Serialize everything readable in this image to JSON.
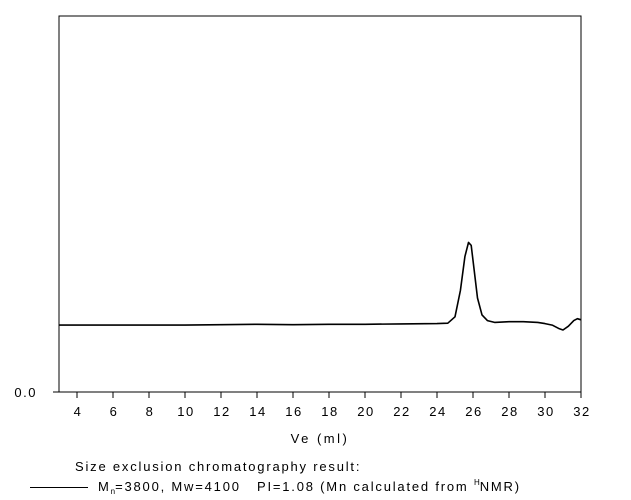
{
  "chart_data": {
    "type": "line",
    "xlabel": "Ve (ml)",
    "ylabel": "",
    "xlim": [
      3,
      32
    ],
    "ylim": [
      0,
      1
    ],
    "x_ticks": [
      4,
      6,
      8,
      10,
      12,
      14,
      16,
      18,
      20,
      22,
      24,
      26,
      28,
      30,
      32
    ],
    "x_tick_labels": [
      "4",
      "6",
      "8",
      "10",
      "12",
      "14",
      "16",
      "18",
      "20",
      "22",
      "24",
      "26",
      "28",
      "30",
      "32"
    ],
    "y_ticks": [
      0
    ],
    "y_tick_labels": [
      "0.0"
    ],
    "grid": false,
    "legend_position": "bottom-left",
    "series": [
      {
        "name": "Mn=3800, Mw=4100 PI=1.08 (Mn calculated from HNMR)",
        "x": [
          3,
          6,
          10,
          12,
          14,
          16,
          18,
          20,
          22,
          24,
          24.6,
          25.0,
          25.3,
          25.55,
          25.75,
          25.9,
          26.05,
          26.25,
          26.5,
          26.8,
          27.2,
          28,
          28.8,
          29.6,
          30.0,
          30.4,
          30.8,
          31.0,
          31.3,
          31.6,
          31.8,
          32
        ],
        "y": [
          0.178,
          0.178,
          0.178,
          0.179,
          0.18,
          0.179,
          0.18,
          0.18,
          0.181,
          0.182,
          0.183,
          0.2,
          0.27,
          0.36,
          0.398,
          0.39,
          0.33,
          0.25,
          0.205,
          0.19,
          0.185,
          0.187,
          0.187,
          0.185,
          0.182,
          0.178,
          0.168,
          0.165,
          0.175,
          0.19,
          0.195,
          0.192
        ]
      }
    ]
  },
  "caption": {
    "title": "Size exclusion chromatography result:",
    "legend_m": "M",
    "legend_sub": "n",
    "legend_mid": "=3800, Mw=4100   PI=1.08 (Mn calculated from ",
    "legend_sup": "H",
    "legend_end": "NMR)"
  }
}
